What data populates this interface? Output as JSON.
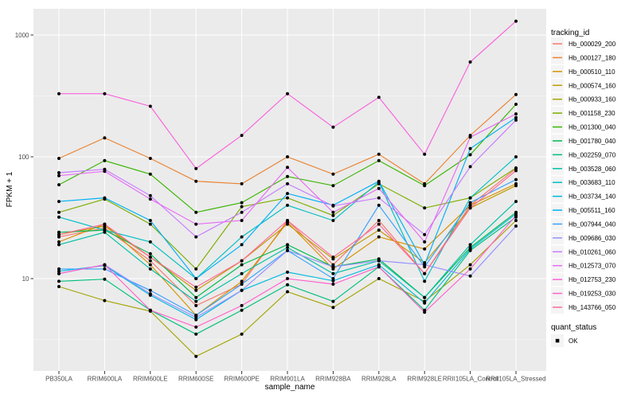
{
  "figure": {
    "legend": {
      "tracking_title": "tracking_id",
      "quant_title": "quant_status",
      "quant_items": [
        {
          "label": "OK",
          "marker_color": "#000000"
        }
      ]
    },
    "colors": {
      "panel_bg": "#EBEBEB",
      "grid_major": "#FFFFFF",
      "grid_minor": "#FFFFFF",
      "tick_text": "#4D4D4D",
      "point": "#000000",
      "legend_key_bg": "#F4F4F4",
      "axis_tick": "#333333"
    }
  },
  "chart_data": {
    "type": "line",
    "title": "",
    "xlabel": "sample_name",
    "ylabel": "FPKM + 1",
    "y_scale": "log10",
    "y_ticks": [
      10,
      100,
      1000
    ],
    "y_minor_ticks": [
      3.162,
      31.62,
      316.2
    ],
    "ylim": [
      1.75,
      1645
    ],
    "grid": true,
    "legend_position": "right",
    "x_categories": [
      "PB350LA",
      "RRIM600LA",
      "RRIM600LE",
      "RRIM600SE",
      "RRIM600PE",
      "RRIM901LA",
      "RRIM928BA",
      "RRIM928LA",
      "RRIM928LE",
      "RRII105LA_Control",
      "RRII105LA_Stressed"
    ],
    "series": [
      {
        "name": "Hb_000029_200",
        "color": "#F8766D",
        "values": [
          22,
          26,
          14,
          6,
          9,
          30,
          13,
          30,
          11,
          40,
          80
        ]
      },
      {
        "name": "Hb_000127_180",
        "color": "#EA8331",
        "values": [
          97,
          143,
          97,
          63,
          60,
          100,
          72,
          105,
          60,
          150,
          325
        ]
      },
      {
        "name": "Hb_000510_110",
        "color": "#D89200",
        "values": [
          20,
          28,
          13,
          5,
          9.5,
          29,
          12,
          22,
          17.5,
          40,
          60
        ]
      },
      {
        "name": "Hb_000574_160",
        "color": "#C09B00",
        "values": [
          23,
          27,
          15,
          8,
          14,
          28,
          14.5,
          25,
          13.5,
          38,
          58
        ]
      },
      {
        "name": "Hb_000933_160",
        "color": "#A3A500",
        "values": [
          8.6,
          6.6,
          5.4,
          2.3,
          3.5,
          7.8,
          5.8,
          10,
          6.5,
          13,
          30
        ]
      },
      {
        "name": "Hb_001158_230",
        "color": "#7CAE00",
        "values": [
          35,
          45,
          28,
          12,
          39,
          46,
          33,
          60,
          38,
          46,
          81
        ]
      },
      {
        "name": "Hb_001300_040",
        "color": "#39B600",
        "values": [
          59,
          93,
          72,
          35,
          42,
          69,
          58,
          93,
          58,
          104,
          270
        ]
      },
      {
        "name": "Hb_001780_040",
        "color": "#00BB4E",
        "values": [
          24,
          25,
          16,
          7,
          13,
          19,
          12.5,
          14.5,
          7,
          18,
          35
        ]
      },
      {
        "name": "Hb_002259_070",
        "color": "#00BF7D",
        "values": [
          9.5,
          9.9,
          5.5,
          3.5,
          5.5,
          8.9,
          6.5,
          12.5,
          5.5,
          17,
          32
        ]
      },
      {
        "name": "Hb_003528_060",
        "color": "#00C1A3",
        "values": [
          19,
          24,
          12,
          6.5,
          11,
          18,
          11,
          14,
          7,
          19,
          43
        ]
      },
      {
        "name": "Hb_003683_110",
        "color": "#00BFC4",
        "values": [
          32,
          25,
          20,
          10,
          22,
          40,
          30,
          62,
          9.5,
          46,
          100
        ]
      },
      {
        "name": "Hb_003734_140",
        "color": "#00BAE0",
        "values": [
          11.5,
          12.8,
          7.3,
          4.6,
          8,
          11.3,
          9.6,
          13,
          6.3,
          17.5,
          34
        ]
      },
      {
        "name": "Hb_005511_160",
        "color": "#00B0F6",
        "values": [
          43,
          46,
          30,
          10,
          19,
          50,
          40,
          63,
          13,
          117,
          210
        ]
      },
      {
        "name": "Hb_007944_040",
        "color": "#35A2FF",
        "values": [
          12,
          12,
          8,
          5,
          9,
          17,
          10,
          40,
          12.5,
          42,
          65
        ]
      },
      {
        "name": "Hb_009686_030",
        "color": "#9590FF",
        "values": [
          11,
          13,
          7.5,
          4.8,
          8,
          17,
          12.5,
          14,
          13,
          10.5,
          27
        ]
      },
      {
        "name": "Hb_010261_060",
        "color": "#C77CFF",
        "values": [
          74,
          79,
          48,
          22,
          35,
          60,
          39.5,
          46,
          23,
          83,
          200
        ]
      },
      {
        "name": "Hb_012573_070",
        "color": "#E76BF3",
        "values": [
          70,
          76,
          45,
          28,
          30,
          82,
          35,
          55,
          20,
          145,
          225
        ]
      },
      {
        "name": "Hb_012753_230",
        "color": "#FA62DB",
        "values": [
          330,
          330,
          260,
          80,
          150,
          330,
          175,
          308,
          105,
          600,
          1300
        ]
      },
      {
        "name": "Hb_019253_030",
        "color": "#FF61CC",
        "values": [
          11,
          13,
          5.5,
          4,
          6,
          10,
          9,
          12.5,
          5.3,
          12,
          33
        ]
      },
      {
        "name": "Hb_143766_050",
        "color": "#FF6A98",
        "values": [
          23,
          28,
          15,
          8.5,
          14,
          30,
          15,
          28,
          11,
          38,
          77
        ]
      }
    ]
  }
}
